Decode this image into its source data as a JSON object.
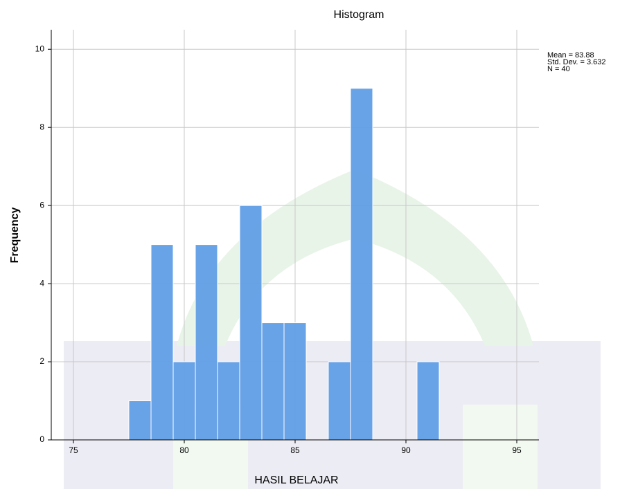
{
  "chart_data": {
    "type": "histogram",
    "title": "Histogram",
    "xlabel": "HASIL BELAJAR",
    "ylabel": "Frequency",
    "bins": [
      77.5,
      78.5,
      79.5,
      80.5,
      81.5,
      82.5,
      83.5,
      84.5,
      85.5,
      86.5,
      87.5,
      88.5,
      89.5,
      90.5,
      91.5
    ],
    "values": [
      1,
      5,
      2,
      5,
      2,
      6,
      3,
      3,
      0,
      2,
      9,
      0,
      0,
      2
    ],
    "color": "#619ee6",
    "xlim": [
      74,
      96
    ],
    "xticks": [
      75,
      80,
      85,
      90,
      95
    ],
    "ylim": [
      0,
      10.5
    ],
    "yticks": [
      0,
      2,
      4,
      6,
      8,
      10
    ],
    "grid": true,
    "annotations": [
      "Mean = 83.88",
      "Std. Dev. = 3.632",
      "N = 40"
    ]
  }
}
